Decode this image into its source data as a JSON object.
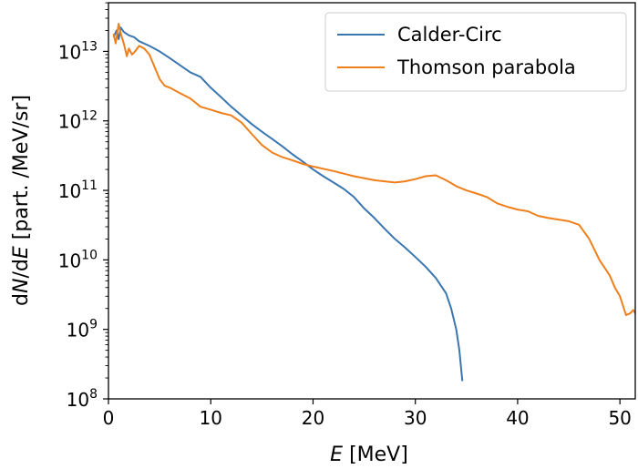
{
  "chart_data": {
    "type": "line",
    "title": "",
    "xlabel": {
      "italic": "E",
      "unit": " [MeV]"
    },
    "ylabel": {
      "prefix": "d",
      "italic_num": "N",
      "mid": "/d",
      "italic_den": "E",
      "unit": " [part. /MeV/sr]"
    },
    "xlim": [
      0,
      51.5
    ],
    "ylim_log10": [
      8,
      13.7
    ],
    "yscale": "log",
    "grid": false,
    "legend_position": "top-right",
    "x_ticks": [
      0,
      10,
      20,
      30,
      40,
      50
    ],
    "y_ticks": [
      {
        "base": "10",
        "exp": "8",
        "value": 100000000.0
      },
      {
        "base": "10",
        "exp": "9",
        "value": 1000000000.0
      },
      {
        "base": "10",
        "exp": "10",
        "value": 10000000000.0
      },
      {
        "base": "10",
        "exp": "11",
        "value": 100000000000.0
      },
      {
        "base": "10",
        "exp": "12",
        "value": 1000000000000.0
      },
      {
        "base": "10",
        "exp": "13",
        "value": 10000000000000.0
      }
    ],
    "series": [
      {
        "name": "Calder-Circ",
        "color": "#3a76b0",
        "points": [
          [
            0.5,
            16000000000000.0
          ],
          [
            0.8,
            20000000000000.0
          ],
          [
            1.0,
            15000000000000.0
          ],
          [
            1.2,
            22000000000000.0
          ],
          [
            1.5,
            19000000000000.0
          ],
          [
            2.0,
            17000000000000.0
          ],
          [
            2.5,
            16000000000000.0
          ],
          [
            3.0,
            14000000000000.0
          ],
          [
            4.0,
            12000000000000.0
          ],
          [
            5.0,
            10000000000000.0
          ],
          [
            6.0,
            8000000000000.0
          ],
          [
            7.0,
            6300000000000.0
          ],
          [
            8.0,
            5000000000000.0
          ],
          [
            9.0,
            4300000000000.0
          ],
          [
            10.0,
            3000000000000.0
          ],
          [
            11.0,
            2200000000000.0
          ],
          [
            12.0,
            1600000000000.0
          ],
          [
            13.0,
            1200000000000.0
          ],
          [
            14.0,
            900000000000.0
          ],
          [
            15.0,
            700000000000.0
          ],
          [
            16.0,
            550000000000.0
          ],
          [
            17.0,
            430000000000.0
          ],
          [
            18.0,
            330000000000.0
          ],
          [
            19.0,
            260000000000.0
          ],
          [
            20.0,
            200000000000.0
          ],
          [
            21.0,
            160000000000.0
          ],
          [
            22.0,
            130000000000.0
          ],
          [
            23.0,
            105000000000.0
          ],
          [
            24.0,
            80000000000.0
          ],
          [
            25.0,
            55000000000.0
          ],
          [
            26.0,
            40000000000.0
          ],
          [
            27.0,
            28000000000.0
          ],
          [
            28.0,
            20000000000.0
          ],
          [
            29.0,
            15000000000.0
          ],
          [
            30.0,
            11000000000.0
          ],
          [
            31.0,
            8000000000.0
          ],
          [
            32.0,
            5500000000.0
          ],
          [
            33.0,
            3300000000.0
          ],
          [
            33.5,
            2000000000.0
          ],
          [
            34.0,
            1000000000.0
          ],
          [
            34.3,
            500000000.0
          ],
          [
            34.6,
            180000000.0
          ]
        ]
      },
      {
        "name": "Thomson parabola",
        "color": "#ef7f1a",
        "points": [
          [
            0.5,
            18000000000000.0
          ],
          [
            0.7,
            13000000000000.0
          ],
          [
            0.9,
            20000000000000.0
          ],
          [
            1.0,
            25000000000000.0
          ],
          [
            1.2,
            18000000000000.0
          ],
          [
            1.5,
            13000000000000.0
          ],
          [
            1.8,
            8500000000000.0
          ],
          [
            2.0,
            11000000000000.0
          ],
          [
            2.3,
            9000000000000.0
          ],
          [
            2.6,
            10000000000000.0
          ],
          [
            3.0,
            12000000000000.0
          ],
          [
            3.5,
            11000000000000.0
          ],
          [
            4.0,
            9000000000000.0
          ],
          [
            4.5,
            6000000000000.0
          ],
          [
            5.0,
            4000000000000.0
          ],
          [
            5.5,
            3200000000000.0
          ],
          [
            6.0,
            3000000000000.0
          ],
          [
            7.0,
            2500000000000.0
          ],
          [
            8.0,
            2100000000000.0
          ],
          [
            9.0,
            1600000000000.0
          ],
          [
            10.0,
            1450000000000.0
          ],
          [
            11.0,
            1300000000000.0
          ],
          [
            12.0,
            1200000000000.0
          ],
          [
            13.0,
            950000000000.0
          ],
          [
            14.0,
            650000000000.0
          ],
          [
            15.0,
            450000000000.0
          ],
          [
            16.0,
            350000000000.0
          ],
          [
            17.0,
            300000000000.0
          ],
          [
            18.0,
            270000000000.0
          ],
          [
            19.0,
            240000000000.0
          ],
          [
            20.0,
            220000000000.0
          ],
          [
            22.0,
            190000000000.0
          ],
          [
            24.0,
            160000000000.0
          ],
          [
            26.0,
            140000000000.0
          ],
          [
            28.0,
            130000000000.0
          ],
          [
            29.0,
            135000000000.0
          ],
          [
            30.0,
            145000000000.0
          ],
          [
            31.0,
            160000000000.0
          ],
          [
            32.0,
            165000000000.0
          ],
          [
            33.0,
            140000000000.0
          ],
          [
            34.0,
            115000000000.0
          ],
          [
            35.0,
            100000000000.0
          ],
          [
            36.0,
            90000000000.0
          ],
          [
            37.0,
            80000000000.0
          ],
          [
            38.0,
            65000000000.0
          ],
          [
            39.0,
            58000000000.0
          ],
          [
            40.0,
            53000000000.0
          ],
          [
            41.0,
            50000000000.0
          ],
          [
            42.0,
            43000000000.0
          ],
          [
            43.0,
            40000000000.0
          ],
          [
            44.0,
            38000000000.0
          ],
          [
            45.0,
            36000000000.0
          ],
          [
            46.0,
            32000000000.0
          ],
          [
            47.0,
            20000000000.0
          ],
          [
            48.0,
            10000000000.0
          ],
          [
            49.0,
            6000000000.0
          ],
          [
            49.5,
            4000000000.0
          ],
          [
            50.0,
            3000000000.0
          ],
          [
            50.3,
            2200000000.0
          ],
          [
            50.6,
            1600000000.0
          ],
          [
            51.0,
            1700000000.0
          ],
          [
            51.3,
            1900000000.0
          ],
          [
            51.5,
            1700000000.0
          ]
        ]
      }
    ]
  }
}
